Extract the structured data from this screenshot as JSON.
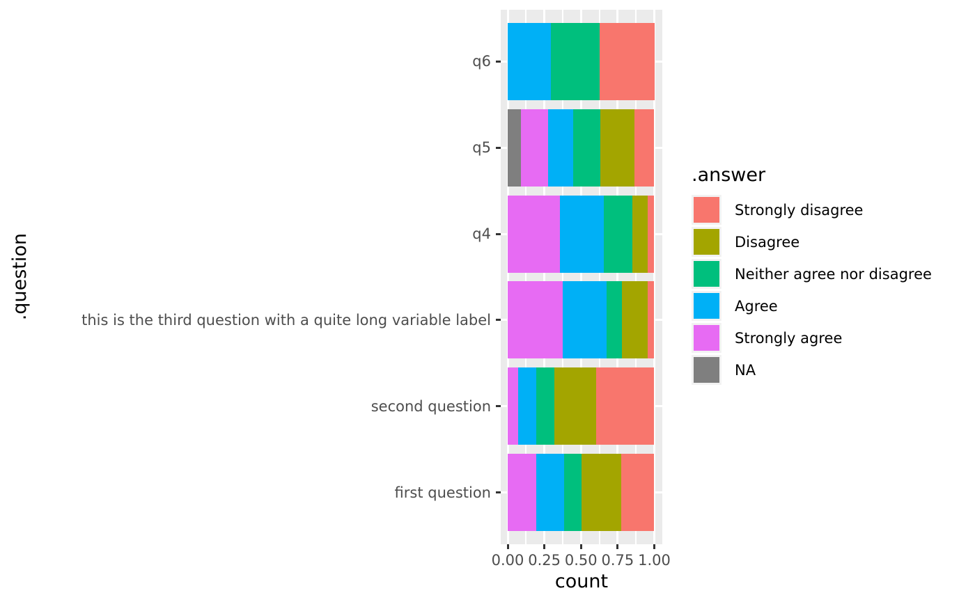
{
  "chart_data": {
    "type": "bar",
    "orientation": "horizontal",
    "stacked": true,
    "normalized": true,
    "xlabel": "count",
    "ylabel": ".question",
    "legend_title": ".answer",
    "legend_position": "right",
    "grid": true,
    "xlim": [
      0,
      1
    ],
    "x_tick_labels": [
      "0.00",
      "0.25",
      "0.50",
      "0.75",
      "1.00"
    ],
    "x_tick_values": [
      0,
      0.25,
      0.5,
      0.75,
      1.0
    ],
    "x_minor_values": [
      0.125,
      0.375,
      0.625,
      0.875
    ],
    "categories": [
      "q6",
      "q5",
      "q4",
      "this is the third question with a quite long variable label",
      "second question",
      "first question"
    ],
    "series": [
      {
        "name": "NA",
        "color": "#7F7F7F",
        "values": [
          0,
          0.09,
          0,
          0,
          0,
          0
        ]
      },
      {
        "name": "Strongly agree",
        "color": "#E76BF3",
        "values": [
          0,
          0.185,
          0.355,
          0.375,
          0.07,
          0.195
        ]
      },
      {
        "name": "Agree",
        "color": "#00B0F6",
        "values": [
          0.295,
          0.17,
          0.3,
          0.3,
          0.125,
          0.19
        ]
      },
      {
        "name": "Neither agree nor disagree",
        "color": "#00BF7D",
        "values": [
          0.33,
          0.185,
          0.195,
          0.105,
          0.125,
          0.12
        ]
      },
      {
        "name": "Disagree",
        "color": "#A3A500",
        "values": [
          0,
          0.235,
          0.105,
          0.175,
          0.285,
          0.27
        ]
      },
      {
        "name": "Strongly disagree",
        "color": "#F8766D",
        "values": [
          0.375,
          0.135,
          0.045,
          0.045,
          0.395,
          0.225
        ]
      }
    ],
    "legend_order": [
      "Strongly disagree",
      "Disagree",
      "Neither agree nor disagree",
      "Agree",
      "Strongly agree",
      "NA"
    ],
    "styles": {
      "panel_bg": "#EBEBEB",
      "grid_color": "#FFFFFF",
      "axis_text_color": "#4D4D4D",
      "title_color": "#000000",
      "tick_color": "#333333",
      "legend_key_bg": "#F2F2F2"
    }
  }
}
